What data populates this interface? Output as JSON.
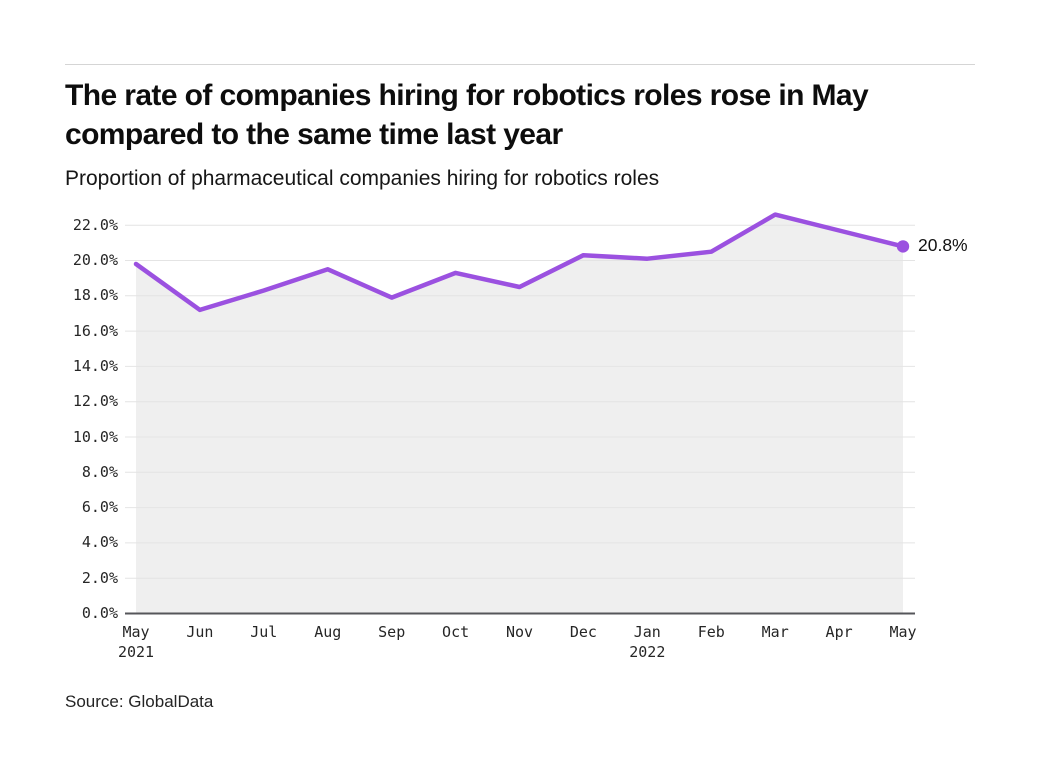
{
  "header": {
    "title": "The rate of companies hiring for robotics roles rose in May compared to the same time last year",
    "subtitle": "Proportion of pharmaceutical companies hiring for robotics roles"
  },
  "chart_data": {
    "type": "area",
    "title": "The rate of companies hiring for robotics roles rose in May compared to the same time last year",
    "subtitle": "Proportion of pharmaceutical companies hiring for robotics roles",
    "categories": [
      {
        "label": "May",
        "year": "2021"
      },
      {
        "label": "Jun"
      },
      {
        "label": "Jul"
      },
      {
        "label": "Aug"
      },
      {
        "label": "Sep"
      },
      {
        "label": "Oct"
      },
      {
        "label": "Nov"
      },
      {
        "label": "Dec"
      },
      {
        "label": "Jan",
        "year": "2022"
      },
      {
        "label": "Feb"
      },
      {
        "label": "Mar"
      },
      {
        "label": "Apr"
      },
      {
        "label": "May"
      }
    ],
    "values": [
      19.8,
      17.2,
      18.3,
      19.5,
      17.9,
      19.3,
      18.5,
      20.3,
      20.1,
      20.5,
      22.6,
      21.7,
      20.8
    ],
    "unit": "%",
    "ylim": [
      0,
      22
    ],
    "ytick_step": 2,
    "ytick_labels": [
      "0.0%",
      "2.0%",
      "4.0%",
      "6.0%",
      "8.0%",
      "10.0%",
      "12.0%",
      "14.0%",
      "16.0%",
      "18.0%",
      "20.0%",
      "22.0%"
    ],
    "end_label": "20.8%",
    "grid": true,
    "legend": "none",
    "line_color": "#9B51E0",
    "fill_color": "#efefef",
    "gridline_color": "#e4e4e4",
    "axis_color": "#55565a",
    "source": "Source: GlobalData"
  },
  "footer": {
    "source": "Source: GlobalData"
  }
}
